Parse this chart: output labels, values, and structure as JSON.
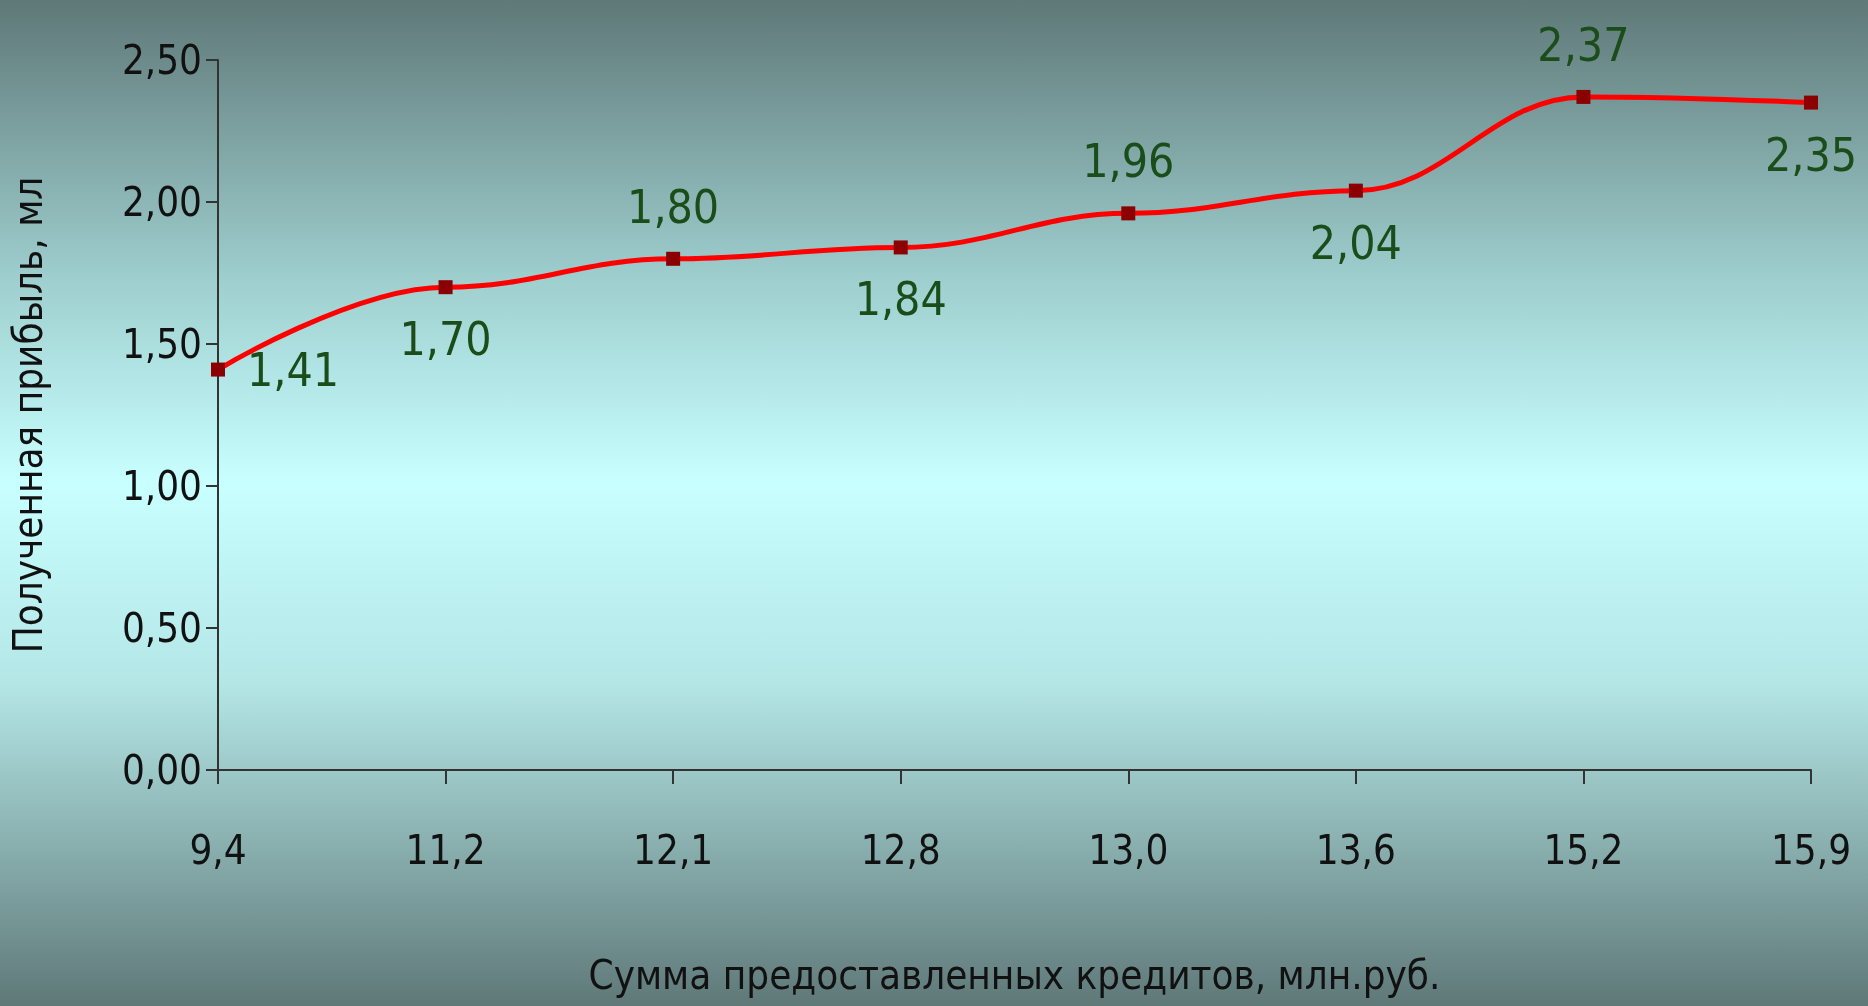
{
  "chart_data": {
    "type": "line",
    "xlabel": "Сумма предоставленных кредитов, млн.руб.",
    "ylabel": "Полученная прибыль, мл",
    "categories": [
      "9,4",
      "11,2",
      "12,1",
      "12,8",
      "13,0",
      "13,6",
      "15,2",
      "15,9"
    ],
    "series": [
      {
        "color": "#ff0000",
        "values": [
          1.41,
          1.7,
          1.8,
          1.84,
          1.96,
          2.04,
          2.37,
          2.35
        ],
        "value_labels": [
          "1,41",
          "1,70",
          "1,80",
          "1,84",
          "1,96",
          "2,04",
          "2,37",
          "2,35"
        ]
      }
    ],
    "ylim": [
      0,
      2.5
    ],
    "yticks": [
      {
        "value": 0,
        "label": "0,00"
      },
      {
        "value": 0.5,
        "label": "0,50"
      },
      {
        "value": 1,
        "label": "1,00"
      },
      {
        "value": 1.5,
        "label": "1,50"
      },
      {
        "value": 2,
        "label": "2,00"
      },
      {
        "value": 2.5,
        "label": "2,50"
      }
    ],
    "marker": "square",
    "grid": false
  }
}
